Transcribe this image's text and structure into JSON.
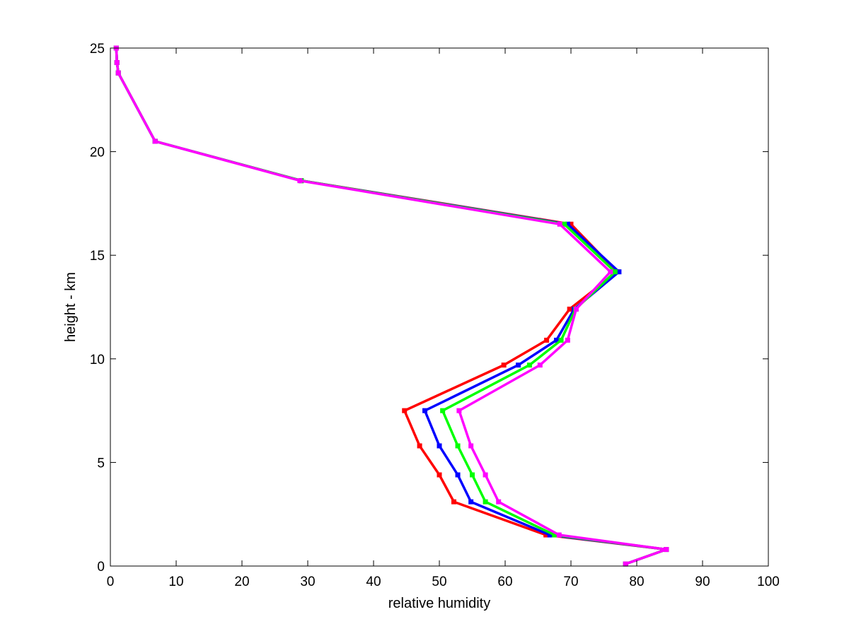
{
  "chart_data": {
    "type": "line",
    "title": "",
    "xlabel": "relative humidity",
    "ylabel": "height - km",
    "xlim": [
      0,
      100
    ],
    "ylim": [
      0,
      25
    ],
    "xticks": [
      0,
      10,
      20,
      30,
      40,
      50,
      60,
      70,
      80,
      90,
      100
    ],
    "yticks": [
      0,
      5,
      10,
      15,
      20,
      25
    ],
    "grid": false,
    "legend": "none",
    "series": [
      {
        "color": "#000000",
        "points": [
          [
            78.3,
            0.1
          ],
          [
            84.5,
            0.8
          ],
          [
            66.8,
            1.5
          ],
          [
            54.8,
            3.1
          ],
          [
            52.8,
            4.4
          ],
          [
            50.0,
            5.8
          ],
          [
            47.8,
            7.5
          ],
          [
            62.0,
            9.7
          ],
          [
            67.8,
            10.9
          ],
          [
            70.5,
            12.4
          ],
          [
            77.3,
            14.2
          ],
          [
            69.5,
            16.5
          ],
          [
            29.0,
            18.6
          ],
          [
            6.8,
            20.5
          ],
          [
            1.2,
            23.8
          ],
          [
            1.0,
            24.3
          ],
          [
            0.9,
            25.0
          ]
        ]
      },
      {
        "color": "#ff0000",
        "points": [
          [
            78.3,
            0.1
          ],
          [
            84.5,
            0.8
          ],
          [
            66.2,
            1.5
          ],
          [
            52.2,
            3.1
          ],
          [
            50.0,
            4.4
          ],
          [
            47.0,
            5.8
          ],
          [
            44.7,
            7.5
          ],
          [
            59.8,
            9.7
          ],
          [
            66.3,
            10.9
          ],
          [
            69.8,
            12.4
          ],
          [
            77.0,
            14.2
          ],
          [
            70.0,
            16.5
          ],
          [
            29.0,
            18.6
          ],
          [
            6.8,
            20.5
          ],
          [
            1.2,
            23.8
          ],
          [
            1.0,
            24.3
          ],
          [
            0.9,
            25.0
          ]
        ]
      },
      {
        "color": "#0000ff",
        "points": [
          [
            78.3,
            0.1
          ],
          [
            84.5,
            0.8
          ],
          [
            66.8,
            1.5
          ],
          [
            54.8,
            3.1
          ],
          [
            52.8,
            4.4
          ],
          [
            50.0,
            5.8
          ],
          [
            47.8,
            7.5
          ],
          [
            62.0,
            9.7
          ],
          [
            67.8,
            10.9
          ],
          [
            70.5,
            12.4
          ],
          [
            77.3,
            14.2
          ],
          [
            69.5,
            16.5
          ],
          [
            29.0,
            18.6
          ],
          [
            6.8,
            20.5
          ],
          [
            1.2,
            23.8
          ],
          [
            1.0,
            24.3
          ],
          [
            0.9,
            25.0
          ]
        ]
      },
      {
        "color": "#00ff00",
        "points": [
          [
            78.3,
            0.1
          ],
          [
            84.5,
            0.8
          ],
          [
            67.5,
            1.5
          ],
          [
            57.0,
            3.1
          ],
          [
            55.0,
            4.4
          ],
          [
            52.8,
            5.8
          ],
          [
            50.5,
            7.5
          ],
          [
            63.7,
            9.7
          ],
          [
            68.5,
            10.9
          ],
          [
            70.7,
            12.4
          ],
          [
            76.7,
            14.2
          ],
          [
            69.0,
            16.5
          ],
          [
            29.0,
            18.6
          ],
          [
            6.8,
            20.5
          ],
          [
            1.2,
            23.8
          ],
          [
            1.0,
            24.3
          ],
          [
            0.9,
            25.0
          ]
        ]
      },
      {
        "color": "#ff00ff",
        "points": [
          [
            78.3,
            0.1
          ],
          [
            84.5,
            0.8
          ],
          [
            68.2,
            1.5
          ],
          [
            59.0,
            3.1
          ],
          [
            57.0,
            4.4
          ],
          [
            54.8,
            5.8
          ],
          [
            53.0,
            7.5
          ],
          [
            65.3,
            9.7
          ],
          [
            69.5,
            10.9
          ],
          [
            70.8,
            12.4
          ],
          [
            76.0,
            14.2
          ],
          [
            68.3,
            16.5
          ],
          [
            28.8,
            18.6
          ],
          [
            6.8,
            20.5
          ],
          [
            1.2,
            23.8
          ],
          [
            1.0,
            24.3
          ],
          [
            0.9,
            25.0
          ]
        ]
      }
    ]
  }
}
